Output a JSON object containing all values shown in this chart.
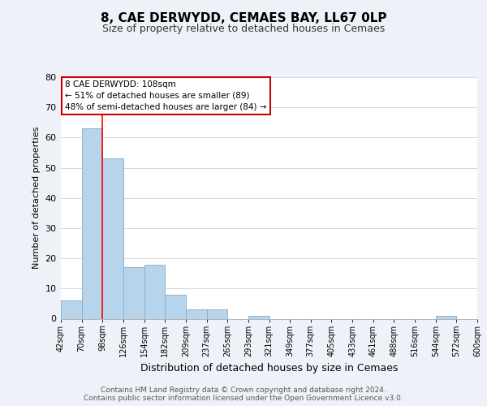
{
  "title1": "8, CAE DERWYDD, CEMAES BAY, LL67 0LP",
  "title2": "Size of property relative to detached houses in Cemaes",
  "xlabel": "Distribution of detached houses by size in Cemaes",
  "ylabel": "Number of detached properties",
  "bin_labels": [
    "42sqm",
    "70sqm",
    "98sqm",
    "126sqm",
    "154sqm",
    "182sqm",
    "209sqm",
    "237sqm",
    "265sqm",
    "293sqm",
    "321sqm",
    "349sqm",
    "377sqm",
    "405sqm",
    "433sqm",
    "461sqm",
    "488sqm",
    "516sqm",
    "544sqm",
    "572sqm",
    "600sqm"
  ],
  "bar_values": [
    6,
    63,
    53,
    17,
    18,
    8,
    3,
    3,
    0,
    1,
    0,
    0,
    0,
    0,
    0,
    0,
    0,
    0,
    1,
    0
  ],
  "bar_color": "#b8d4ea",
  "bar_edge_color": "#7aafd4",
  "ylim": [
    0,
    80
  ],
  "yticks": [
    0,
    10,
    20,
    30,
    40,
    50,
    60,
    70,
    80
  ],
  "red_line_bin": 2,
  "annotation_title": "8 CAE DERWYDD: 108sqm",
  "annotation_line1": "← 51% of detached houses are smaller (89)",
  "annotation_line2": "48% of semi-detached houses are larger (84) →",
  "footer1": "Contains HM Land Registry data © Crown copyright and database right 2024.",
  "footer2": "Contains public sector information licensed under the Open Government Licence v3.0.",
  "background_color": "#eef2f8",
  "plot_background": "#ffffff",
  "grid_color": "#d0d8e8"
}
